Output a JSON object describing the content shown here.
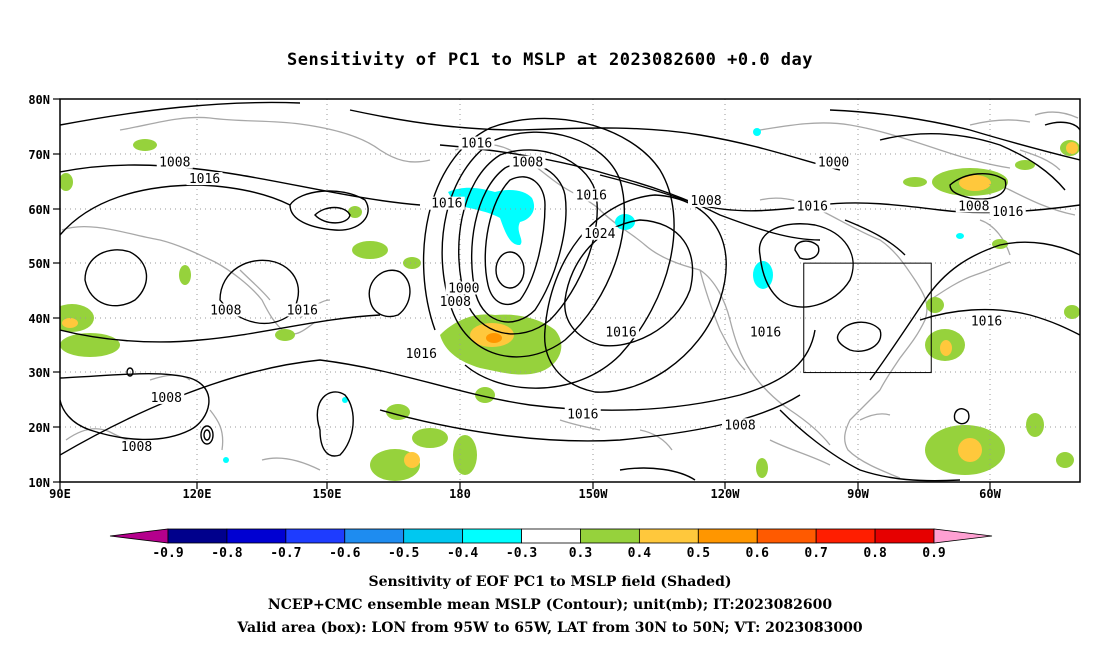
{
  "title": "Sensitivity of PC1 to MSLP at 2023082600 +0.0 day",
  "map": {
    "lon_labels": [
      "90E",
      "120E",
      "150E",
      "180",
      "150W",
      "120W",
      "90W",
      "60W"
    ],
    "lat_labels": [
      "80N",
      "70N",
      "60N",
      "50N",
      "40N",
      "30N",
      "20N",
      "10N"
    ],
    "valid_box": {
      "lon_w": -95,
      "lon_e": -65,
      "lat_s": 30,
      "lat_n": 50
    },
    "contour_labels": [
      {
        "text": "1016",
        "lon": -172,
        "lat": 71.5
      },
      {
        "text": "1008",
        "lon": -160,
        "lat": 68
      },
      {
        "text": "1016",
        "lon": -145,
        "lat": 62
      },
      {
        "text": "1024",
        "lon": -143,
        "lat": 55
      },
      {
        "text": "1000",
        "lon": -175,
        "lat": 45
      },
      {
        "text": "1008",
        "lon": -177,
        "lat": 42.5
      },
      {
        "text": "1016",
        "lon": -179,
        "lat": 60.5
      },
      {
        "text": "1016",
        "lon": 175,
        "lat": 33
      },
      {
        "text": "1008",
        "lon": -118,
        "lat": 61
      },
      {
        "text": "1000",
        "lon": -88,
        "lat": 68
      },
      {
        "text": "1016",
        "lon": -93,
        "lat": 60
      },
      {
        "text": "1008",
        "lon": -55,
        "lat": 60
      },
      {
        "text": "1016",
        "lon": -47,
        "lat": 59
      },
      {
        "text": "1016",
        "lon": -138,
        "lat": 37
      },
      {
        "text": "1016",
        "lon": -104,
        "lat": 37
      },
      {
        "text": "1016",
        "lon": -52,
        "lat": 39
      },
      {
        "text": "1016",
        "lon": -147,
        "lat": 22
      },
      {
        "text": "1008",
        "lon": -110,
        "lat": 20
      },
      {
        "text": "1008",
        "lon": 117,
        "lat": 68
      },
      {
        "text": "1016",
        "lon": 124,
        "lat": 65
      },
      {
        "text": "1008",
        "lon": 129,
        "lat": 41
      },
      {
        "text": "1016",
        "lon": 147,
        "lat": 41
      },
      {
        "text": "1008",
        "lon": 115,
        "lat": 25
      },
      {
        "text": "1008",
        "lon": 108,
        "lat": 16
      }
    ]
  },
  "colorbar": {
    "labels": [
      "-0.9",
      "-0.8",
      "-0.7",
      "-0.6",
      "-0.5",
      "-0.4",
      "-0.3",
      "0.3",
      "0.4",
      "0.5",
      "0.6",
      "0.7",
      "0.8",
      "0.9"
    ],
    "colors": [
      "#b4008c",
      "#00008c",
      "#0000d2",
      "#1e3cff",
      "#1e8cf0",
      "#00c8f0",
      "#00ffff",
      "#ffffff",
      "#96d23c",
      "#ffc83c",
      "#ff9600",
      "#ff5a00",
      "#ff1e00",
      "#e60000",
      "#ffa0d2"
    ]
  },
  "captions": {
    "line1": "Sensitivity of EOF PC1 to MSLP field (Shaded)",
    "line2": "NCEP+CMC ensemble mean MSLP (Contour); unit(mb); IT:2023082600",
    "line3": "Valid area (box): LON from 95W to 65W, LAT from 30N to 50N; VT: 2023083000"
  }
}
